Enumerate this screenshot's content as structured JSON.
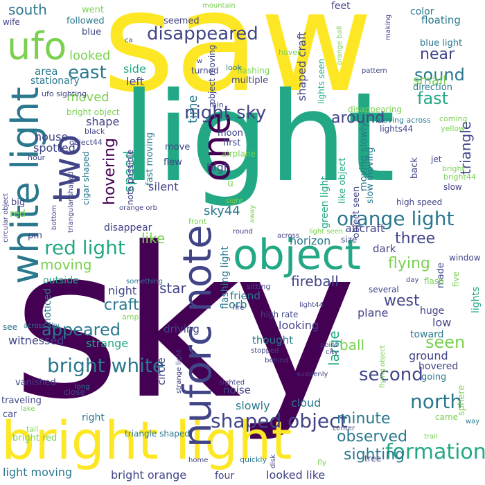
{
  "word_cloud": {
    "words": [
      {
        "text": "saw",
        "color": "#fde725"
      },
      {
        "text": "sky",
        "color": "#440154"
      },
      {
        "text": "light",
        "color": "#22a884"
      },
      {
        "text": "bright light",
        "color": "#fde725"
      },
      {
        "text": "object",
        "color": "#22a884"
      },
      {
        "text": "one",
        "color": "#440154"
      },
      {
        "text": "nuforc note",
        "color": "#414487"
      },
      {
        "text": "white light",
        "color": "#2a788e"
      },
      {
        "text": "ufo",
        "color": "#7ad151"
      },
      {
        "text": "two",
        "color": "#414487"
      },
      {
        "text": "disappeared",
        "color": "#414487"
      },
      {
        "text": "night sky",
        "color": "#414487"
      },
      {
        "text": "orange light",
        "color": "#2a788e"
      },
      {
        "text": "red light",
        "color": "#22a884"
      },
      {
        "text": "shaped object",
        "color": "#414487"
      },
      {
        "text": "bright white",
        "color": "#2a788e"
      },
      {
        "text": "formation",
        "color": "#22a884"
      },
      {
        "text": "sky44",
        "color": "#2a788e"
      },
      {
        "text": "moving",
        "color": "#7ad151"
      },
      {
        "text": "flying",
        "color": "#7ad151"
      },
      {
        "text": "fireball",
        "color": "#414487"
      },
      {
        "text": "west",
        "color": "#414487"
      },
      {
        "text": "east",
        "color": "#2a788e"
      },
      {
        "text": "south",
        "color": "#2a788e"
      },
      {
        "text": "looked",
        "color": "#7ad151"
      },
      {
        "text": "near",
        "color": "#414487"
      },
      {
        "text": "sound",
        "color": "#2a788e"
      },
      {
        "text": "fast",
        "color": "#22a884"
      },
      {
        "text": "around",
        "color": "#414487"
      },
      {
        "text": "triangle",
        "color": "#414487"
      },
      {
        "text": "hovering",
        "color": "#440154"
      },
      {
        "text": "speed",
        "color": "#22a884"
      },
      {
        "text": "craft",
        "color": "#2a788e"
      },
      {
        "text": "appeared",
        "color": "#2a788e"
      },
      {
        "text": "star",
        "color": "#414487"
      },
      {
        "text": "north",
        "color": "#2a788e"
      },
      {
        "text": "second",
        "color": "#414487"
      },
      {
        "text": "minute",
        "color": "#2a788e"
      },
      {
        "text": "observed",
        "color": "#2a788e"
      },
      {
        "text": "sighting",
        "color": "#2a788e"
      },
      {
        "text": "seen",
        "color": "#7ad151"
      },
      {
        "text": "three",
        "color": "#414487"
      },
      {
        "text": "large",
        "color": "#22a884"
      },
      {
        "text": "ball",
        "color": "#7ad151"
      },
      {
        "text": "time",
        "color": "#2a788e"
      },
      {
        "text": "like",
        "color": "#7ad151"
      },
      {
        "text": "shape",
        "color": "#414487"
      },
      {
        "text": "high",
        "color": "#414487"
      },
      {
        "text": "silent",
        "color": "#414487"
      },
      {
        "text": "went",
        "color": "#7ad151"
      },
      {
        "text": "followed",
        "color": "#2a788e"
      },
      {
        "text": "feet",
        "color": "#414487"
      },
      {
        "text": "floating",
        "color": "#2a788e"
      },
      {
        "text": "color",
        "color": "#2a788e"
      },
      {
        "text": "blue light",
        "color": "#2a788e"
      },
      {
        "text": "small",
        "color": "#7ad151"
      },
      {
        "text": "moved",
        "color": "#7ad151"
      },
      {
        "text": "house",
        "color": "#414487"
      },
      {
        "text": "spotted",
        "color": "#414487"
      },
      {
        "text": "area",
        "color": "#2a788e"
      },
      {
        "text": "stationary",
        "color": "#2a788e"
      },
      {
        "text": "left",
        "color": "#414487"
      },
      {
        "text": "side",
        "color": "#22a884"
      },
      {
        "text": "red",
        "color": "#7ad151"
      },
      {
        "text": "big",
        "color": "#414487"
      },
      {
        "text": "cigar shaped",
        "color": "#2a788e"
      },
      {
        "text": "disappear",
        "color": "#414487"
      },
      {
        "text": "pm",
        "color": "#414487"
      },
      {
        "text": "night",
        "color": "#414487"
      },
      {
        "text": "outside",
        "color": "#22a884"
      },
      {
        "text": "noticed",
        "color": "#2a788e"
      },
      {
        "text": "witnessed",
        "color": "#414487"
      },
      {
        "text": "strange",
        "color": "#22a884"
      },
      {
        "text": "vanished",
        "color": "#414487"
      },
      {
        "text": "traveling",
        "color": "#414487"
      },
      {
        "text": "car",
        "color": "#414487"
      },
      {
        "text": "right",
        "color": "#2a788e"
      },
      {
        "text": "bright red",
        "color": "#7ad151"
      },
      {
        "text": "light moving",
        "color": "#2a788e"
      },
      {
        "text": "bright orange",
        "color": "#414487"
      },
      {
        "text": "four",
        "color": "#414487"
      },
      {
        "text": "looked like",
        "color": "#414487"
      },
      {
        "text": "ground",
        "color": "#414487"
      },
      {
        "text": "hovered",
        "color": "#414487"
      },
      {
        "text": "going",
        "color": "#2a788e"
      },
      {
        "text": "sphere",
        "color": "#7ad151"
      },
      {
        "text": "came",
        "color": "#7ad151"
      },
      {
        "text": "low",
        "color": "#414487"
      },
      {
        "text": "huge",
        "color": "#414487"
      },
      {
        "text": "toward",
        "color": "#2a788e"
      },
      {
        "text": "lights",
        "color": "#22a884"
      },
      {
        "text": "made",
        "color": "#414487"
      },
      {
        "text": "five",
        "color": "#7ad151"
      },
      {
        "text": "aircraft",
        "color": "#414487"
      },
      {
        "text": "horizon",
        "color": "#2a788e"
      },
      {
        "text": "dark",
        "color": "#414487"
      },
      {
        "text": "friend",
        "color": "#2a788e"
      },
      {
        "text": "looking",
        "color": "#414487"
      },
      {
        "text": "thought",
        "color": "#2a788e"
      },
      {
        "text": "plane",
        "color": "#414487"
      },
      {
        "text": "cloud",
        "color": "#2a788e"
      },
      {
        "text": "slowly",
        "color": "#2a788e"
      },
      {
        "text": "circle",
        "color": "#414487"
      },
      {
        "text": "driving",
        "color": "#414487"
      },
      {
        "text": "noise",
        "color": "#414487"
      },
      {
        "text": "orb",
        "color": "#2a788e"
      },
      {
        "text": "high rate",
        "color": "#414487"
      },
      {
        "text": "flashing light",
        "color": "#2a788e"
      },
      {
        "text": "green light",
        "color": "#22a884"
      },
      {
        "text": "shaped craft",
        "color": "#414487"
      },
      {
        "text": "lights seen",
        "color": "#22a884"
      },
      {
        "text": "direction",
        "color": "#2a788e"
      },
      {
        "text": "coming",
        "color": "#7ad151"
      },
      {
        "text": "yellow",
        "color": "#7ad151"
      },
      {
        "text": "lights44",
        "color": "#414487"
      },
      {
        "text": "moving slowly",
        "color": "#2a788e"
      },
      {
        "text": "slow moving",
        "color": "#2a788e"
      },
      {
        "text": "like object",
        "color": "#22a884"
      },
      {
        "text": "object seen",
        "color": "#414487"
      },
      {
        "text": "back",
        "color": "#414487"
      },
      {
        "text": "slow",
        "color": "#414487"
      },
      {
        "text": "jet",
        "color": "#414487"
      },
      {
        "text": "bright",
        "color": "#7ad151"
      },
      {
        "text": "bright44",
        "color": "#7ad151"
      },
      {
        "text": "first",
        "color": "#414487"
      },
      {
        "text": "moon",
        "color": "#414487"
      },
      {
        "text": "seemed",
        "color": "#414487"
      },
      {
        "text": "fast moving",
        "color": "#2a788e"
      },
      {
        "text": "note possible",
        "color": "#414487"
      },
      {
        "text": "move",
        "color": "#414487"
      },
      {
        "text": "flew",
        "color": "#414487"
      },
      {
        "text": "u",
        "color": "#7ad151"
      },
      {
        "text": "disappearing",
        "color": "#7ad151"
      },
      {
        "text": "moving across",
        "color": "#2a788e"
      },
      {
        "text": "airplane",
        "color": "#7ad151"
      },
      {
        "text": "object moving",
        "color": "#414487"
      },
      {
        "text": "min",
        "color": "#414487"
      },
      {
        "text": "blue",
        "color": "#414487"
      },
      {
        "text": "multiple",
        "color": "#414487"
      },
      {
        "text": "flashing",
        "color": "#7ad151"
      },
      {
        "text": "turned",
        "color": "#414487"
      },
      {
        "text": "look",
        "color": "#2a788e"
      },
      {
        "text": "hover",
        "color": "#7ad151"
      },
      {
        "text": "mountain",
        "color": "#7ad151"
      },
      {
        "text": "wife",
        "color": "#414487"
      },
      {
        "text": "ufo sighting",
        "color": "#414487"
      },
      {
        "text": "bright object",
        "color": "#7ad151"
      },
      {
        "text": "black",
        "color": "#414487"
      },
      {
        "text": "object44",
        "color": "#414487"
      },
      {
        "text": "hour",
        "color": "#414487"
      },
      {
        "text": "circular object",
        "color": "#414487"
      },
      {
        "text": "triangular shaped",
        "color": "#414487"
      },
      {
        "text": "bottom",
        "color": "#414487"
      },
      {
        "text": "orange orb",
        "color": "#414487"
      },
      {
        "text": "orange ball",
        "color": "#7ad151"
      },
      {
        "text": "making",
        "color": "#414487"
      },
      {
        "text": "pattern",
        "color": "#414487"
      },
      {
        "text": "ca",
        "color": "#414487"
      },
      {
        "text": "w",
        "color": "#414487"
      },
      {
        "text": "sight",
        "color": "#7ad151"
      },
      {
        "text": "front",
        "color": "#7ad151"
      },
      {
        "text": "away",
        "color": "#7ad151"
      },
      {
        "text": "round",
        "color": "#414487"
      },
      {
        "text": "across",
        "color": "#414487"
      },
      {
        "text": "light seen",
        "color": "#7ad151"
      },
      {
        "text": "size",
        "color": "#414487"
      },
      {
        "text": "high speed",
        "color": "#414487"
      },
      {
        "text": "window",
        "color": "#414487"
      },
      {
        "text": "day",
        "color": "#414487"
      },
      {
        "text": "something",
        "color": "#2a788e"
      },
      {
        "text": "sitting",
        "color": "#414487"
      },
      {
        "text": "flash",
        "color": "#7ad151"
      },
      {
        "text": "fire",
        "color": "#414487"
      },
      {
        "text": "light44",
        "color": "#414487"
      },
      {
        "text": "several",
        "color": "#414487"
      },
      {
        "text": "point",
        "color": "#414487"
      },
      {
        "text": "city",
        "color": "#414487"
      },
      {
        "text": "stopped",
        "color": "#414487"
      },
      {
        "text": "behind",
        "color": "#414487"
      },
      {
        "text": "flying object",
        "color": "#7ad151"
      },
      {
        "text": "amp",
        "color": "#7ad151"
      },
      {
        "text": "see",
        "color": "#2a788e"
      },
      {
        "text": "across sky",
        "color": "#2a788e"
      },
      {
        "text": "strange light",
        "color": "#414487"
      },
      {
        "text": "sighted",
        "color": "#414487"
      },
      {
        "text": "suddenly",
        "color": "#414487"
      },
      {
        "text": "close",
        "color": "#414487"
      },
      {
        "text": "long",
        "color": "#2a788e"
      },
      {
        "text": "lake",
        "color": "#7ad151"
      },
      {
        "text": "disk",
        "color": "#414487"
      },
      {
        "text": "center",
        "color": "#414487"
      },
      {
        "text": "trail",
        "color": "#7ad151"
      },
      {
        "text": "way",
        "color": "#2a788e"
      },
      {
        "text": "tail",
        "color": "#7ad151"
      },
      {
        "text": "triangle shaped",
        "color": "#2a788e"
      },
      {
        "text": "home",
        "color": "#414487"
      },
      {
        "text": "quickly",
        "color": "#2a788e"
      },
      {
        "text": "tree",
        "color": "#414487"
      },
      {
        "text": "fly",
        "color": "#7ad151"
      }
    ]
  }
}
